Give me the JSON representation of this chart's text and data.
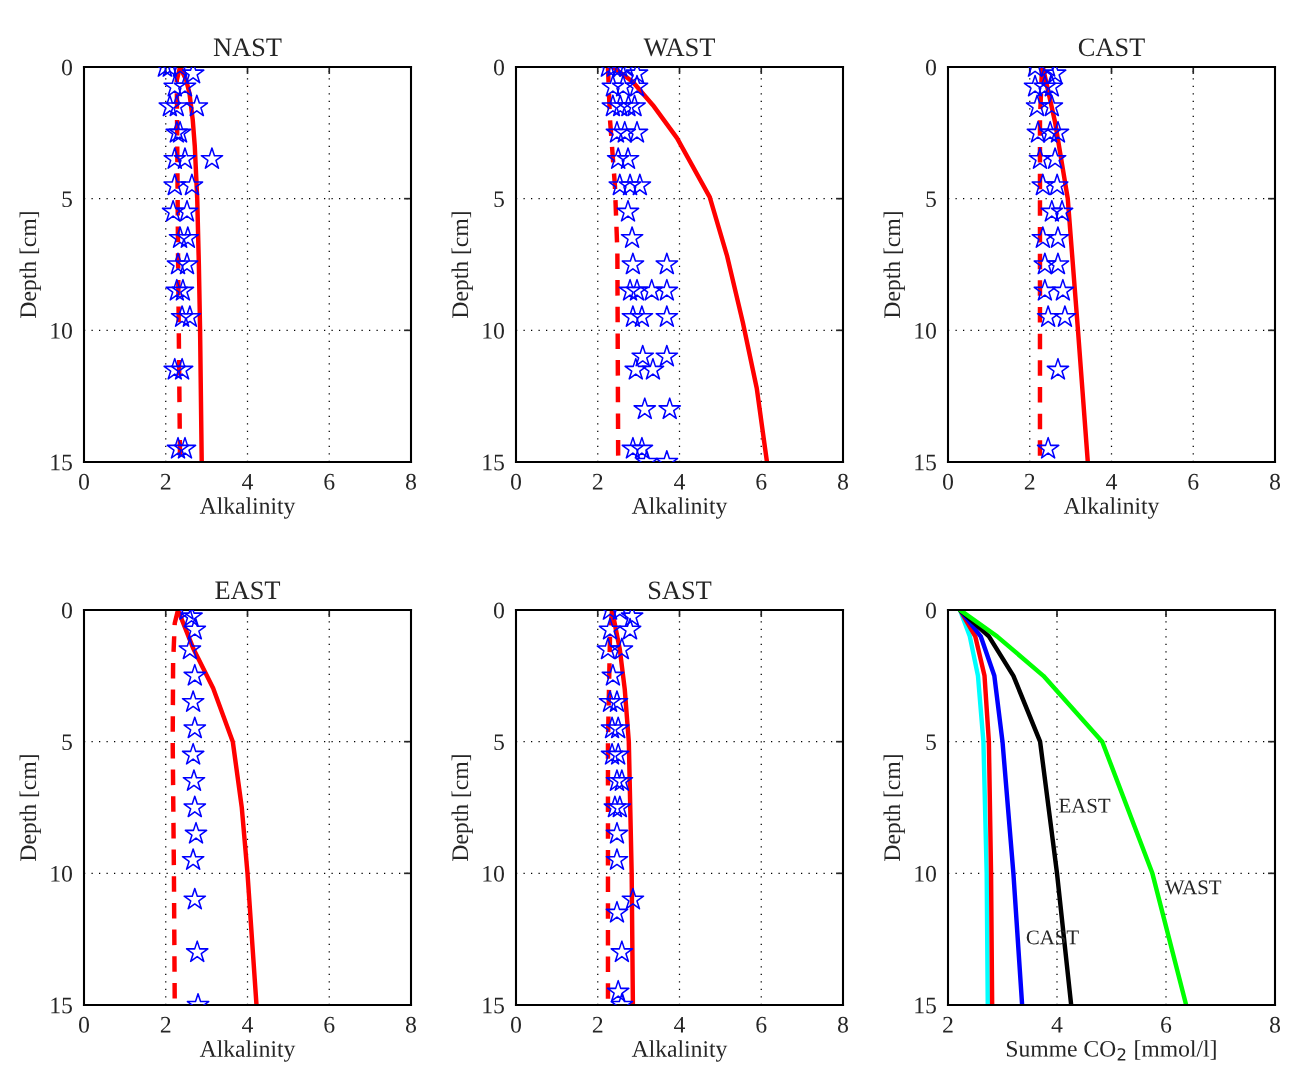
{
  "chart_data": [
    {
      "type": "line",
      "title": "NAST",
      "xlabel": "Alkalinity",
      "ylabel": "Depth [cm]",
      "xlim": [
        0,
        8
      ],
      "xticks": [
        0,
        2,
        4,
        6,
        8
      ],
      "ylim": [
        15,
        0
      ],
      "yticks": [
        0,
        5,
        10,
        15
      ],
      "grid": true,
      "legend": false,
      "series": [
        {
          "type": "scatter",
          "marker": "star",
          "color": "#0000ff",
          "x": [
            1.98,
            2.1,
            2.35,
            2.67,
            2.22,
            2.47,
            2.1,
            2.27,
            2.76,
            2.27,
            2.35,
            2.22,
            2.47,
            3.13,
            2.22,
            2.64,
            2.18,
            2.52,
            2.35,
            2.54,
            2.3,
            2.52,
            2.27,
            2.42,
            2.4,
            2.59,
            2.22,
            2.4,
            2.3,
            2.47
          ],
          "values": [
            0,
            0,
            0,
            0.25,
            0.75,
            0.75,
            1.5,
            1.5,
            1.5,
            2.5,
            2.5,
            3.5,
            3.5,
            3.5,
            4.5,
            4.5,
            5.5,
            5.5,
            6.5,
            6.5,
            7.5,
            7.5,
            8.5,
            8.5,
            9.5,
            9.5,
            11.5,
            11.5,
            14.5,
            14.5
          ]
        },
        {
          "type": "line",
          "line_style": "solid",
          "color": "#ff0000",
          "x": [
            2.35,
            2.5,
            2.58,
            2.66,
            2.71,
            2.77,
            2.81,
            2.84,
            2.88
          ],
          "values": [
            0,
            0.5,
            1,
            2,
            3,
            5,
            7.5,
            10,
            15
          ]
        },
        {
          "type": "line",
          "line_style": "dashed",
          "color": "#ff0000",
          "x": [
            2.35,
            2.27,
            2.3,
            2.35
          ],
          "values": [
            0,
            0.5,
            7,
            15
          ]
        }
      ]
    },
    {
      "type": "line",
      "title": "WAST",
      "xlabel": "Alkalinity",
      "ylabel": "Depth [cm]",
      "xlim": [
        0,
        8
      ],
      "xticks": [
        0,
        2,
        4,
        6,
        8
      ],
      "ylim": [
        15,
        0
      ],
      "yticks": [
        0,
        5,
        10,
        15
      ],
      "grid": true,
      "legend": false,
      "series": [
        {
          "type": "scatter",
          "marker": "star",
          "color": "#0000ff",
          "x": [
            2.25,
            2.4,
            2.55,
            2.7,
            2.96,
            2.37,
            2.62,
            2.96,
            2.37,
            2.55,
            2.75,
            2.9,
            2.47,
            2.66,
            2.96,
            2.5,
            2.74,
            2.54,
            2.79,
            3.03,
            2.74,
            2.84,
            2.86,
            3.69,
            2.79,
            2.96,
            3.32,
            3.69,
            2.86,
            3.08,
            3.69,
            3.1,
            3.69,
            2.93,
            3.35,
            3.15,
            3.76,
            2.86,
            3.08,
            3.2,
            3.69
          ],
          "values": [
            0,
            0,
            0,
            0,
            0.25,
            0.75,
            0.75,
            0.75,
            1.5,
            1.5,
            1.5,
            1.5,
            2.5,
            2.5,
            2.5,
            3.5,
            3.5,
            4.5,
            4.5,
            4.5,
            5.5,
            6.5,
            7.5,
            7.5,
            8.5,
            8.5,
            8.5,
            8.5,
            9.5,
            9.5,
            9.5,
            11,
            11,
            11.5,
            11.5,
            13,
            13,
            14.5,
            14.5,
            15,
            15
          ]
        },
        {
          "type": "line",
          "line_style": "solid",
          "color": "#ff0000",
          "x": [
            2.37,
            2.86,
            3.35,
            3.94,
            4.74,
            5.16,
            5.55,
            5.89,
            6.14
          ],
          "values": [
            0,
            0.57,
            1.45,
            2.7,
            4.94,
            7.15,
            9.7,
            12.2,
            15
          ]
        },
        {
          "type": "line",
          "line_style": "dashed",
          "color": "#ff0000",
          "x": [
            2.25,
            2.3,
            2.42,
            2.48,
            2.5
          ],
          "values": [
            0,
            2,
            4.5,
            7,
            15
          ]
        }
      ]
    },
    {
      "type": "line",
      "title": "CAST",
      "xlabel": "Alkalinity",
      "ylabel": "Depth [cm]",
      "xlim": [
        0,
        8
      ],
      "xticks": [
        0,
        2,
        4,
        6,
        8
      ],
      "ylim": [
        15,
        0
      ],
      "yticks": [
        0,
        5,
        10,
        15
      ],
      "grid": true,
      "legend": false,
      "series": [
        {
          "type": "scatter",
          "marker": "star",
          "color": "#0000ff",
          "x": [
            2.13,
            2.45,
            2.62,
            2.13,
            2.37,
            2.54,
            2.18,
            2.54,
            2.2,
            2.5,
            2.69,
            2.25,
            2.62,
            2.32,
            2.67,
            2.54,
            2.79,
            2.32,
            2.69,
            2.37,
            2.69,
            2.37,
            2.81,
            2.45,
            2.86,
            2.69,
            2.45
          ],
          "values": [
            0,
            0,
            0.25,
            0.75,
            0.75,
            0.75,
            1.5,
            1.5,
            2.5,
            2.5,
            2.5,
            3.5,
            3.5,
            4.5,
            4.5,
            5.5,
            5.5,
            6.5,
            6.5,
            7.5,
            7.5,
            8.5,
            8.5,
            9.5,
            9.5,
            11.5,
            14.5
          ]
        },
        {
          "type": "line",
          "line_style": "solid",
          "color": "#ff0000",
          "x": [
            2.32,
            2.62,
            2.93,
            3.18,
            3.42
          ],
          "values": [
            0,
            2.1,
            5,
            10,
            15
          ]
        },
        {
          "type": "line",
          "line_style": "dashed",
          "color": "#ff0000",
          "x": [
            2.3,
            2.25,
            2.25
          ],
          "values": [
            0,
            2,
            15
          ]
        }
      ]
    },
    {
      "type": "line",
      "title": "EAST",
      "xlabel": "Alkalinity",
      "ylabel": "Depth [cm]",
      "xlim": [
        0,
        8
      ],
      "xticks": [
        0,
        2,
        4,
        6,
        8
      ],
      "ylim": [
        15,
        0
      ],
      "yticks": [
        0,
        5,
        10,
        15
      ],
      "grid": true,
      "legend": false,
      "series": [
        {
          "type": "scatter",
          "marker": "star",
          "color": "#0000ff",
          "x": [
            2.51,
            2.63,
            2.71,
            2.59,
            2.71,
            2.67,
            2.71,
            2.67,
            2.69,
            2.71,
            2.74,
            2.67,
            2.71,
            2.77,
            2.79
          ],
          "values": [
            0,
            0.25,
            0.75,
            1.5,
            2.5,
            3.5,
            4.5,
            5.5,
            6.5,
            7.5,
            8.5,
            9.5,
            11,
            13,
            15
          ]
        },
        {
          "type": "line",
          "line_style": "solid",
          "color": "#ff0000",
          "x": [
            2.3,
            2.67,
            3.16,
            3.64,
            3.86,
            4.0,
            4.22
          ],
          "values": [
            0,
            1.45,
            2.97,
            5,
            7.5,
            10,
            15
          ]
        },
        {
          "type": "line",
          "line_style": "dashed",
          "color": "#ff0000",
          "x": [
            2.3,
            2.22,
            2.18,
            2.17,
            2.2,
            2.22
          ],
          "values": [
            0,
            0.5,
            2,
            5,
            10,
            15
          ]
        }
      ]
    },
    {
      "type": "line",
      "title": "SAST",
      "xlabel": "Alkalinity",
      "ylabel": "Depth [cm]",
      "xlim": [
        0,
        8
      ],
      "xticks": [
        0,
        2,
        4,
        6,
        8
      ],
      "ylim": [
        15,
        0
      ],
      "yticks": [
        0,
        5,
        10,
        15
      ],
      "grid": true,
      "legend": false,
      "series": [
        {
          "type": "scatter",
          "marker": "star",
          "color": "#0000ff",
          "x": [
            2.3,
            2.54,
            2.84,
            2.3,
            2.79,
            2.25,
            2.59,
            2.37,
            2.3,
            2.47,
            2.35,
            2.5,
            2.35,
            2.5,
            2.47,
            2.59,
            2.42,
            2.54,
            2.47,
            2.47,
            2.86,
            2.47,
            2.59,
            2.5,
            2.59
          ],
          "values": [
            0,
            0,
            0.25,
            0.75,
            0.75,
            1.5,
            1.5,
            2.5,
            3.5,
            3.5,
            4.5,
            4.5,
            5.5,
            5.5,
            6.5,
            6.5,
            7.5,
            7.5,
            8.5,
            9.5,
            11,
            11.5,
            13,
            14.5,
            15
          ]
        },
        {
          "type": "line",
          "line_style": "solid",
          "color": "#ff0000",
          "x": [
            2.35,
            2.54,
            2.66,
            2.76,
            2.83,
            2.86
          ],
          "values": [
            0,
            1.5,
            3,
            5,
            10,
            15
          ]
        },
        {
          "type": "line",
          "line_style": "dashed",
          "color": "#ff0000",
          "x": [
            2.35,
            2.3,
            2.25,
            2.25
          ],
          "values": [
            0,
            1,
            5,
            15
          ]
        }
      ]
    },
    {
      "type": "line",
      "xlabel": "Summe CO$_{2}$ [mmol/l]",
      "ylabel": "Depth [cm]",
      "xlim": [
        2,
        8
      ],
      "xticks": [
        2,
        4,
        6,
        8
      ],
      "ylim": [
        15,
        0
      ],
      "yticks": [
        0,
        5,
        10,
        15
      ],
      "grid": true,
      "legend": false,
      "annotations": [
        {
          "text": "EAST",
          "x": 3.85,
          "y": 7.5
        },
        {
          "text": "WAST",
          "x": 5.8,
          "y": 10.6
        },
        {
          "text": "CAST",
          "x": 3.25,
          "y": 12.5
        }
      ],
      "series": [
        {
          "type": "line",
          "line_style": "solid",
          "color": "#00ffff",
          "x": [
            2.22,
            2.4,
            2.55,
            2.65,
            2.71,
            2.73
          ],
          "values": [
            0,
            1,
            2.5,
            5,
            10,
            15
          ]
        },
        {
          "type": "line",
          "line_style": "solid",
          "color": "#ff0000",
          "x": [
            2.22,
            2.5,
            2.67,
            2.75,
            2.79,
            2.81
          ],
          "values": [
            0,
            1,
            2.5,
            5,
            10,
            15
          ]
        },
        {
          "type": "line",
          "line_style": "solid",
          "color": "#0000ff",
          "x": [
            2.22,
            2.6,
            2.85,
            3.0,
            3.2,
            3.36
          ],
          "values": [
            0,
            1,
            2.5,
            5,
            10,
            15
          ]
        },
        {
          "type": "line",
          "line_style": "solid",
          "color": "#000000",
          "x": [
            2.22,
            2.75,
            3.2,
            3.69,
            4.0,
            4.26
          ],
          "values": [
            0,
            1,
            2.5,
            5,
            10,
            15
          ]
        },
        {
          "type": "line",
          "line_style": "solid",
          "color": "#00ff00",
          "x": [
            2.22,
            2.9,
            3.75,
            4.83,
            5.75,
            6.37
          ],
          "values": [
            0,
            1,
            2.5,
            5,
            10,
            15
          ]
        }
      ]
    }
  ]
}
